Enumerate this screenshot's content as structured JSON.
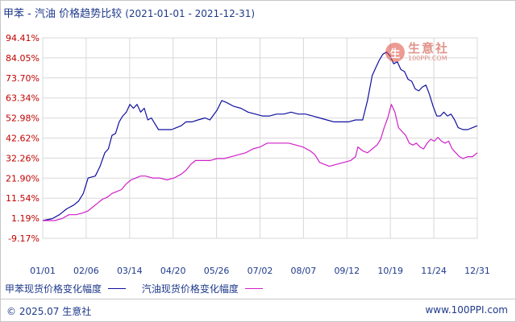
{
  "title": {
    "main": "甲苯 - 汽油 价格趋势比较",
    "range": "(2021-01-01 - 2021-12-31)"
  },
  "watermark": {
    "name": "生意社",
    "url": "100PPI.COM"
  },
  "footer": {
    "left": "© 2025.07 生意社",
    "right": "www.100PPI.com"
  },
  "colors": {
    "series1": "#1010a0",
    "series2": "#d020c8",
    "grid": "#d8d8d8",
    "axis_labels": "#c00000"
  },
  "chart_data": {
    "type": "line",
    "title": "甲苯 - 汽油 价格趋势比较",
    "xlabel": "",
    "ylabel": "",
    "ylim": [
      -9.17,
      94.41
    ],
    "yticks": [
      "94.41%",
      "84.05%",
      "73.70%",
      "63.34%",
      "52.98%",
      "42.62%",
      "32.26%",
      "21.90%",
      "11.54%",
      "1.19%",
      "-9.17%"
    ],
    "ytick_values": [
      94.41,
      84.05,
      73.7,
      63.34,
      52.98,
      42.62,
      32.26,
      21.9,
      11.54,
      1.19,
      -9.17
    ],
    "xticks": [
      "01/01",
      "02/06",
      "03/14",
      "04/20",
      "05/26",
      "07/02",
      "08/07",
      "09/12",
      "10/19",
      "11/24",
      "12/31"
    ],
    "xlim": [
      0,
      364
    ],
    "grid": true,
    "legend_position": "bottom",
    "series": [
      {
        "name": "甲苯现货价格变化幅度",
        "points": [
          [
            0,
            0
          ],
          [
            8,
            1
          ],
          [
            14,
            3
          ],
          [
            20,
            6
          ],
          [
            26,
            8
          ],
          [
            30,
            10
          ],
          [
            34,
            14
          ],
          [
            38,
            22
          ],
          [
            44,
            23
          ],
          [
            48,
            28
          ],
          [
            52,
            35
          ],
          [
            55,
            37
          ],
          [
            58,
            44
          ],
          [
            61,
            45
          ],
          [
            64,
            51
          ],
          [
            67,
            54
          ],
          [
            70,
            56
          ],
          [
            73,
            60
          ],
          [
            76,
            58
          ],
          [
            79,
            60
          ],
          [
            82,
            56
          ],
          [
            85,
            58
          ],
          [
            88,
            52
          ],
          [
            91,
            53
          ],
          [
            94,
            50
          ],
          [
            97,
            47
          ],
          [
            102,
            47
          ],
          [
            108,
            47
          ],
          [
            112,
            48
          ],
          [
            116,
            49
          ],
          [
            120,
            51
          ],
          [
            125,
            51
          ],
          [
            130,
            52
          ],
          [
            136,
            53
          ],
          [
            140,
            52
          ],
          [
            146,
            57
          ],
          [
            150,
            62
          ],
          [
            154,
            61
          ],
          [
            160,
            59
          ],
          [
            166,
            58
          ],
          [
            172,
            56
          ],
          [
            178,
            55
          ],
          [
            184,
            54
          ],
          [
            190,
            54
          ],
          [
            196,
            55
          ],
          [
            202,
            55
          ],
          [
            208,
            56
          ],
          [
            214,
            55
          ],
          [
            220,
            55
          ],
          [
            226,
            54
          ],
          [
            232,
            53
          ],
          [
            238,
            52
          ],
          [
            244,
            51
          ],
          [
            250,
            51
          ],
          [
            256,
            51
          ],
          [
            262,
            52
          ],
          [
            268,
            52
          ],
          [
            272,
            62
          ],
          [
            276,
            75
          ],
          [
            279,
            79
          ],
          [
            282,
            83
          ],
          [
            285,
            86
          ],
          [
            288,
            87
          ],
          [
            291,
            85
          ],
          [
            294,
            81
          ],
          [
            297,
            82
          ],
          [
            300,
            78
          ],
          [
            303,
            77
          ],
          [
            306,
            73
          ],
          [
            309,
            72
          ],
          [
            312,
            68
          ],
          [
            315,
            67
          ],
          [
            318,
            69
          ],
          [
            321,
            70
          ],
          [
            324,
            65
          ],
          [
            327,
            59
          ],
          [
            330,
            54
          ],
          [
            333,
            54
          ],
          [
            336,
            56
          ],
          [
            339,
            54
          ],
          [
            342,
            55
          ],
          [
            345,
            52
          ],
          [
            348,
            48
          ],
          [
            352,
            47
          ],
          [
            356,
            47
          ],
          [
            360,
            48
          ],
          [
            364,
            49
          ]
        ]
      },
      {
        "name": "汽油现货价格变化幅度",
        "points": [
          [
            0,
            0
          ],
          [
            10,
            0
          ],
          [
            16,
            1
          ],
          [
            22,
            3
          ],
          [
            28,
            3
          ],
          [
            34,
            4
          ],
          [
            38,
            5
          ],
          [
            42,
            7
          ],
          [
            46,
            9
          ],
          [
            50,
            11
          ],
          [
            54,
            12
          ],
          [
            58,
            14
          ],
          [
            62,
            15
          ],
          [
            66,
            16
          ],
          [
            70,
            19
          ],
          [
            74,
            21
          ],
          [
            78,
            22
          ],
          [
            82,
            23
          ],
          [
            86,
            23
          ],
          [
            92,
            22
          ],
          [
            98,
            22
          ],
          [
            104,
            21
          ],
          [
            110,
            22
          ],
          [
            116,
            24
          ],
          [
            120,
            26
          ],
          [
            124,
            29
          ],
          [
            128,
            31
          ],
          [
            134,
            31
          ],
          [
            140,
            31
          ],
          [
            146,
            32
          ],
          [
            152,
            32
          ],
          [
            158,
            33
          ],
          [
            164,
            34
          ],
          [
            170,
            35
          ],
          [
            176,
            37
          ],
          [
            182,
            38
          ],
          [
            188,
            40
          ],
          [
            194,
            40
          ],
          [
            200,
            40
          ],
          [
            206,
            40
          ],
          [
            212,
            39
          ],
          [
            218,
            38
          ],
          [
            224,
            36
          ],
          [
            228,
            34
          ],
          [
            232,
            30
          ],
          [
            236,
            29
          ],
          [
            240,
            28
          ],
          [
            246,
            29
          ],
          [
            252,
            30
          ],
          [
            258,
            31
          ],
          [
            262,
            33
          ],
          [
            264,
            38
          ],
          [
            268,
            36
          ],
          [
            272,
            35
          ],
          [
            276,
            37
          ],
          [
            280,
            39
          ],
          [
            283,
            42
          ],
          [
            286,
            48
          ],
          [
            289,
            53
          ],
          [
            292,
            60
          ],
          [
            295,
            56
          ],
          [
            298,
            48
          ],
          [
            301,
            46
          ],
          [
            304,
            44
          ],
          [
            307,
            40
          ],
          [
            310,
            39
          ],
          [
            313,
            40
          ],
          [
            316,
            38
          ],
          [
            319,
            37
          ],
          [
            322,
            40
          ],
          [
            325,
            42
          ],
          [
            328,
            41
          ],
          [
            331,
            43
          ],
          [
            334,
            41
          ],
          [
            337,
            40
          ],
          [
            340,
            41
          ],
          [
            343,
            37
          ],
          [
            346,
            35
          ],
          [
            349,
            33
          ],
          [
            352,
            32
          ],
          [
            356,
            33
          ],
          [
            360,
            33
          ],
          [
            364,
            35
          ]
        ]
      }
    ]
  }
}
